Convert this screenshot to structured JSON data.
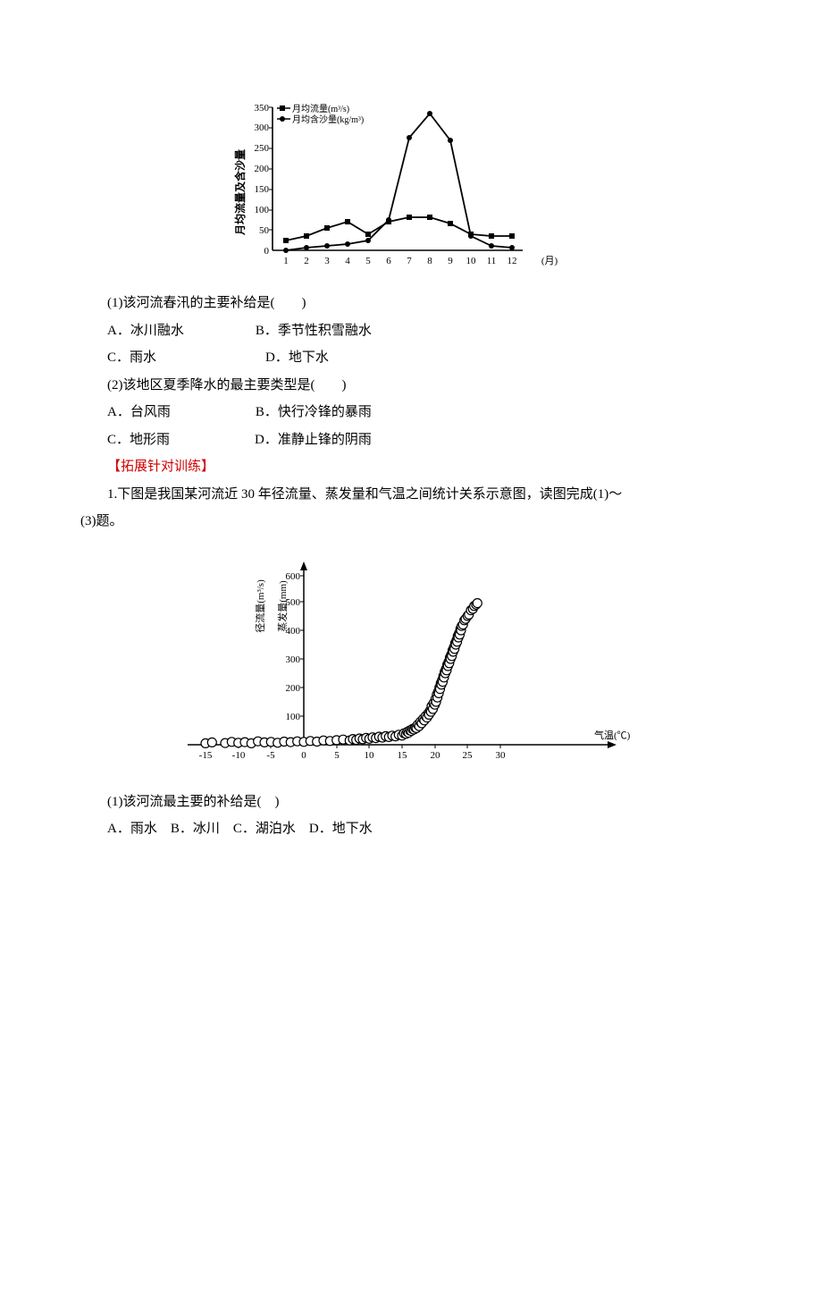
{
  "chart1": {
    "type": "line",
    "y_axis_label_text": "月均流量及含沙量",
    "x_axis_label": "(月)",
    "legend": {
      "flow_label": "月均流量(m³/s)",
      "flow_marker": "square",
      "sed_label": "月均含沙量(kg/m³)",
      "sed_marker": "circle"
    },
    "y_ticks": [
      0,
      50,
      100,
      150,
      200,
      250,
      300,
      350
    ],
    "x_ticks": [
      1,
      2,
      3,
      4,
      5,
      6,
      7,
      8,
      9,
      10,
      11,
      12
    ],
    "ylim": [
      0,
      350
    ],
    "xlim": [
      1,
      12
    ],
    "series_flow": [
      25,
      35,
      55,
      70,
      40,
      70,
      80,
      80,
      65,
      40,
      35,
      35
    ],
    "series_sed": [
      0,
      5,
      10,
      15,
      25,
      75,
      275,
      335,
      270,
      35,
      10,
      5
    ],
    "flow_color": "#000000",
    "sed_color": "#000000",
    "line_width": 2,
    "axis_color": "#000000",
    "axis_fontsize": 11,
    "legend_fontsize": 10
  },
  "q1": {
    "text": "(1)该河流春汛的主要补给是(　　)",
    "A": "A．冰川融水",
    "B": "B．季节性积雪融水",
    "C": "C．雨水",
    "D": "D．地下水"
  },
  "q2": {
    "text": "(2)该地区夏季降水的最主要类型是(　　)",
    "A": "A．台风雨",
    "B": "B．快行冷锋的暴雨",
    "C": "C．地形雨",
    "D": "D．准静止锋的阴雨"
  },
  "section_head": "【拓展针对训练】",
  "intro1": "1.下图是我国某河流近 30 年径流量、蒸发量和气温之间统计关系示意图，读图完成(1)～",
  "intro2": "(3)题。",
  "chart2": {
    "type": "scatter",
    "y_axis_labels": {
      "runoff": "径流量(m³/s)",
      "evap": "蒸发量(mm)"
    },
    "x_axis_label": "气温(℃)",
    "y_ticks": [
      100,
      200,
      300,
      400,
      500,
      600
    ],
    "x_ticks": [
      -15,
      -10,
      -5,
      0,
      5,
      10,
      15,
      20,
      25,
      30
    ],
    "ylim": [
      0,
      620
    ],
    "xlim": [
      -17,
      32
    ],
    "axis_color": "#000000",
    "marker_fill": "#ffffff",
    "marker_stroke": "#000000",
    "marker_size": 5,
    "dense_points": [
      [
        -15,
        5
      ],
      [
        -14,
        8
      ],
      [
        -12,
        6
      ],
      [
        -11,
        10
      ],
      [
        -10,
        7
      ],
      [
        -9,
        9
      ],
      [
        -8,
        5
      ],
      [
        -7,
        12
      ],
      [
        -6,
        8
      ],
      [
        -5,
        10
      ],
      [
        -4,
        7
      ],
      [
        -3,
        11
      ],
      [
        -2,
        9
      ],
      [
        -1,
        12
      ],
      [
        0,
        10
      ],
      [
        1,
        13
      ],
      [
        2,
        11
      ],
      [
        3,
        15
      ],
      [
        4,
        13
      ],
      [
        5,
        16
      ],
      [
        6,
        18
      ],
      [
        7,
        15
      ],
      [
        7.5,
        20
      ],
      [
        8,
        17
      ],
      [
        8.5,
        22
      ],
      [
        9,
        19
      ],
      [
        9.5,
        24
      ],
      [
        10,
        21
      ],
      [
        10.5,
        26
      ],
      [
        11,
        23
      ],
      [
        11.5,
        28
      ],
      [
        12,
        25
      ],
      [
        12.5,
        30
      ],
      [
        13,
        27
      ],
      [
        13.5,
        32
      ],
      [
        14,
        29
      ],
      [
        14.5,
        35
      ],
      [
        15,
        32
      ],
      [
        15.3,
        40
      ],
      [
        15.6,
        38
      ],
      [
        15.8,
        45
      ],
      [
        16,
        42
      ],
      [
        16.2,
        50
      ],
      [
        16.4,
        48
      ],
      [
        16.6,
        55
      ],
      [
        16.8,
        53
      ],
      [
        17,
        60
      ],
      [
        17.2,
        58
      ],
      [
        17.4,
        70
      ],
      [
        17.6,
        65
      ],
      [
        17.8,
        80
      ],
      [
        18,
        75
      ],
      [
        18.2,
        90
      ],
      [
        18.4,
        85
      ],
      [
        18.6,
        100
      ],
      [
        18.8,
        95
      ],
      [
        19,
        110
      ],
      [
        19.1,
        105
      ],
      [
        19.3,
        120
      ],
      [
        19.4,
        115
      ],
      [
        19.5,
        135
      ],
      [
        19.7,
        125
      ],
      [
        19.8,
        145
      ],
      [
        20,
        140
      ],
      [
        20.1,
        160
      ],
      [
        20.2,
        150
      ],
      [
        20.3,
        175
      ],
      [
        20.4,
        165
      ],
      [
        20.5,
        185
      ],
      [
        20.6,
        180
      ],
      [
        20.7,
        200
      ],
      [
        20.8,
        195
      ],
      [
        20.9,
        215
      ],
      [
        21,
        210
      ],
      [
        21.1,
        225
      ],
      [
        21.2,
        220
      ],
      [
        21.3,
        240
      ],
      [
        21.4,
        235
      ],
      [
        21.5,
        255
      ],
      [
        21.6,
        250
      ],
      [
        21.7,
        265
      ],
      [
        21.8,
        260
      ],
      [
        21.9,
        280
      ],
      [
        22,
        275
      ],
      [
        22.1,
        290
      ],
      [
        22.2,
        285
      ],
      [
        22.3,
        305
      ],
      [
        22.4,
        300
      ],
      [
        22.5,
        315
      ],
      [
        22.6,
        310
      ],
      [
        22.7,
        330
      ],
      [
        22.8,
        325
      ],
      [
        22.9,
        340
      ],
      [
        23,
        335
      ],
      [
        23.1,
        355
      ],
      [
        23.2,
        350
      ],
      [
        23.3,
        365
      ],
      [
        23.4,
        360
      ],
      [
        23.5,
        380
      ],
      [
        23.6,
        375
      ],
      [
        23.7,
        390
      ],
      [
        23.8,
        385
      ],
      [
        23.9,
        405
      ],
      [
        24,
        400
      ],
      [
        24.1,
        415
      ],
      [
        24.3,
        420
      ],
      [
        24.5,
        435
      ],
      [
        24.7,
        440
      ],
      [
        25,
        450
      ],
      [
        25.2,
        455
      ],
      [
        25.5,
        470
      ],
      [
        25.8,
        475
      ],
      [
        26,
        485
      ],
      [
        26.3,
        490
      ],
      [
        26.5,
        495
      ]
    ]
  },
  "q3": {
    "text": "(1)该河流最主要的补给是(　)",
    "A": "A．雨水",
    "B": "B．冰川",
    "C": "C．湖泊水",
    "D": "D．地下水"
  }
}
